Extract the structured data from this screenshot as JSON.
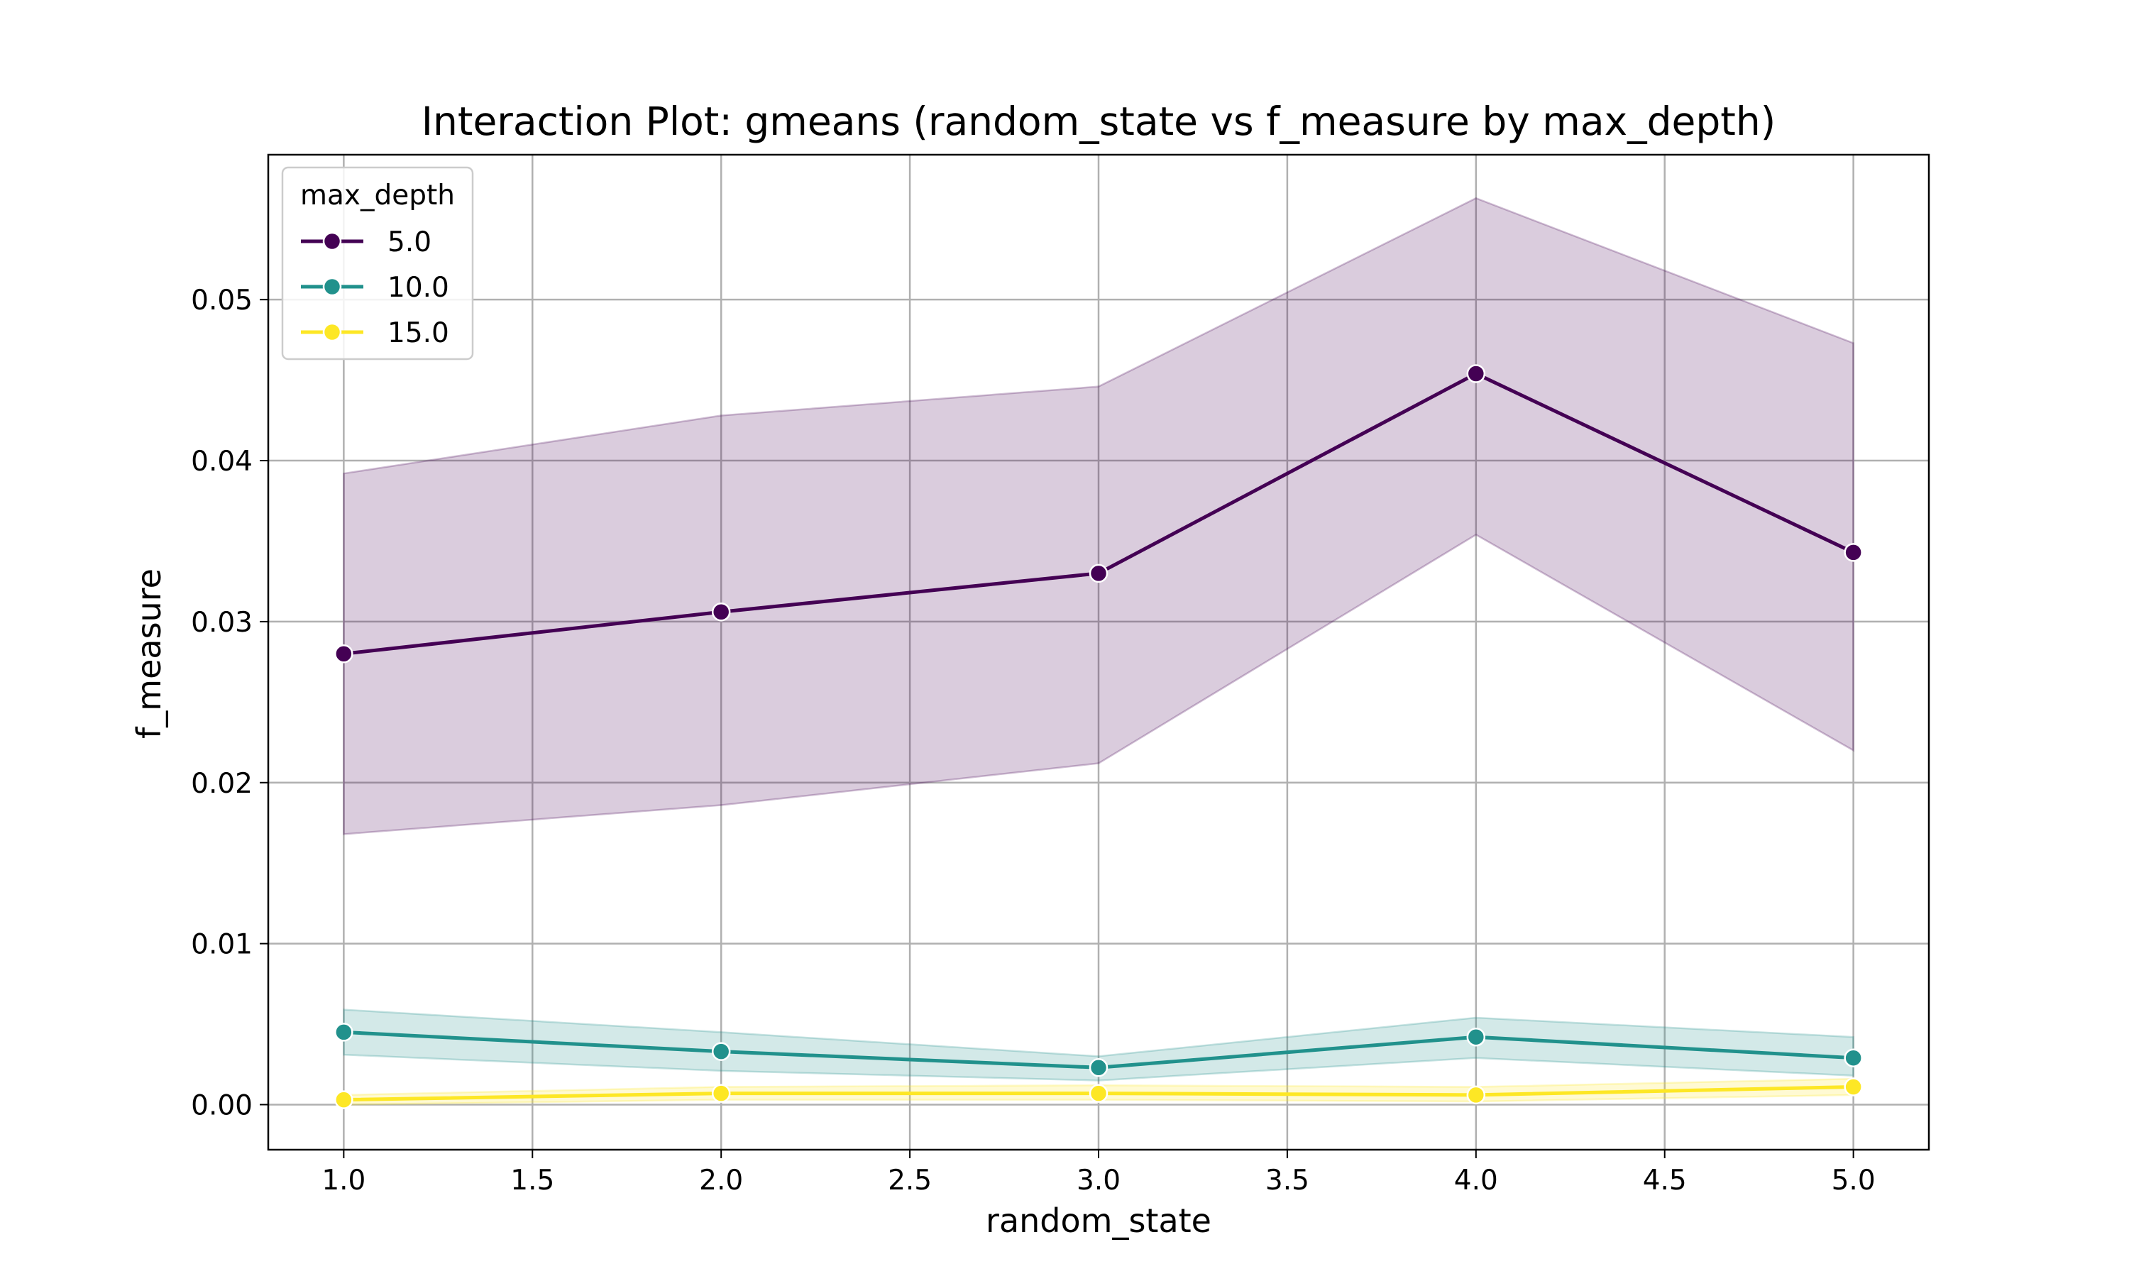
{
  "chart_data": {
    "type": "line",
    "title": "Interaction Plot: gmeans (random_state vs f_measure by max_depth)",
    "xlabel": "random_state",
    "ylabel": "f_measure",
    "xlim": [
      0.8,
      5.2
    ],
    "ylim": [
      -0.0028,
      0.059
    ],
    "x_ticks": [
      1.0,
      1.5,
      2.0,
      2.5,
      3.0,
      3.5,
      4.0,
      4.5,
      5.0
    ],
    "x_tick_labels": [
      "1.0",
      "1.5",
      "2.0",
      "2.5",
      "3.0",
      "3.5",
      "4.0",
      "4.5",
      "5.0"
    ],
    "y_ticks": [
      0.0,
      0.01,
      0.02,
      0.03,
      0.04,
      0.05
    ],
    "y_tick_labels": [
      "0.00",
      "0.01",
      "0.02",
      "0.03",
      "0.04",
      "0.05"
    ],
    "grid": true,
    "legend": {
      "title": "max_depth",
      "position": "upper-left"
    },
    "x": [
      1.0,
      2.0,
      3.0,
      4.0,
      5.0
    ],
    "series": [
      {
        "name": "5.0",
        "color": "#440154",
        "values": [
          0.028,
          0.0306,
          0.033,
          0.0454,
          0.0343
        ],
        "ci_lower": [
          0.0168,
          0.0186,
          0.0212,
          0.0354,
          0.022
        ],
        "ci_upper": [
          0.0392,
          0.0428,
          0.0446,
          0.0563,
          0.0473
        ]
      },
      {
        "name": "10.0",
        "color": "#21918c",
        "values": [
          0.0045,
          0.0033,
          0.0023,
          0.0042,
          0.0029
        ],
        "ci_lower": [
          0.0031,
          0.0021,
          0.0015,
          0.0029,
          0.0018
        ],
        "ci_upper": [
          0.0059,
          0.0045,
          0.003,
          0.0054,
          0.0042
        ]
      },
      {
        "name": "15.0",
        "color": "#fde725",
        "values": [
          0.0003,
          0.0007,
          0.0007,
          0.0006,
          0.0011
        ],
        "ci_lower": [
          0.0,
          0.0003,
          0.0003,
          0.0002,
          0.0006
        ],
        "ci_upper": [
          0.0006,
          0.0011,
          0.0012,
          0.0011,
          0.0016
        ]
      }
    ]
  }
}
